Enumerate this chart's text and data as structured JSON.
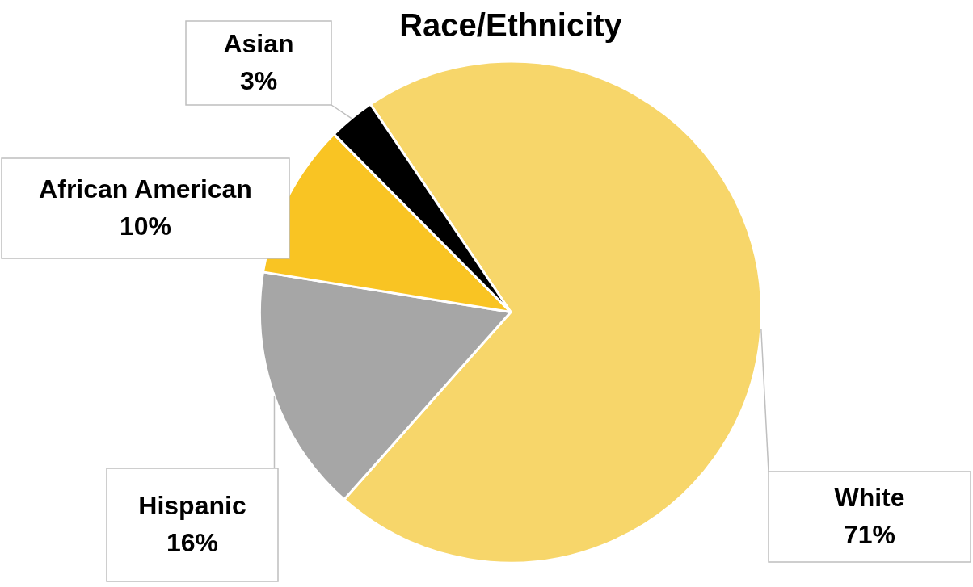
{
  "chart_data": {
    "type": "pie",
    "title": "Race/Ethnicity",
    "categories": [
      "White",
      "Hispanic",
      "African American",
      "Asian"
    ],
    "values": [
      71,
      16,
      10,
      3
    ],
    "value_labels": [
      "71%",
      "16%",
      "10%",
      "3%"
    ],
    "colors": [
      "#f7d66a",
      "#a6a6a6",
      "#f9c423",
      "#000000"
    ],
    "legend": false
  }
}
